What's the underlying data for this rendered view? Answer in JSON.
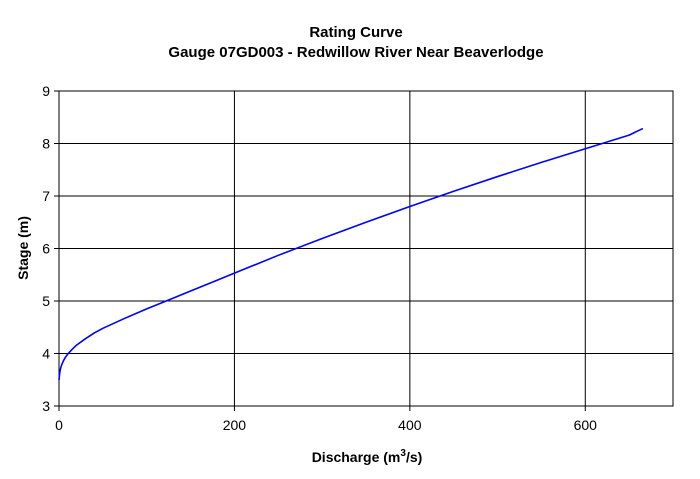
{
  "chart_data": {
    "type": "line",
    "title": "Rating Curve",
    "subtitle": "Gauge 07GD003 - Redwillow River Near Beaverlodge",
    "xlabel": "Discharge (m",
    "xlabel_superscript": "3",
    "xlabel_suffix": "/s)",
    "ylabel": "Stage (m)",
    "xlim": [
      0,
      700
    ],
    "ylim": [
      3,
      9
    ],
    "xticks": [
      0,
      200,
      400,
      600
    ],
    "yticks": [
      3,
      4,
      5,
      6,
      7,
      8,
      9
    ],
    "xtick_labels": [
      "0",
      "200",
      "400",
      "600"
    ],
    "ytick_labels": [
      "3",
      "4",
      "5",
      "6",
      "7",
      "8",
      "9"
    ],
    "grid": true,
    "series": [
      {
        "color": "#0000ff",
        "x": [
          0,
          0.5,
          1,
          2,
          3,
          5,
          7,
          10,
          15,
          20,
          30,
          40,
          50,
          75,
          100,
          125,
          150,
          175,
          200,
          250,
          300,
          350,
          400,
          450,
          500,
          550,
          600,
          650,
          665
        ],
        "y": [
          3.5,
          3.58,
          3.65,
          3.73,
          3.78,
          3.86,
          3.92,
          3.99,
          4.08,
          4.16,
          4.28,
          4.39,
          4.48,
          4.67,
          4.85,
          5.02,
          5.19,
          5.36,
          5.53,
          5.87,
          6.19,
          6.5,
          6.8,
          7.09,
          7.37,
          7.64,
          7.9,
          8.16,
          8.28
        ]
      }
    ]
  }
}
